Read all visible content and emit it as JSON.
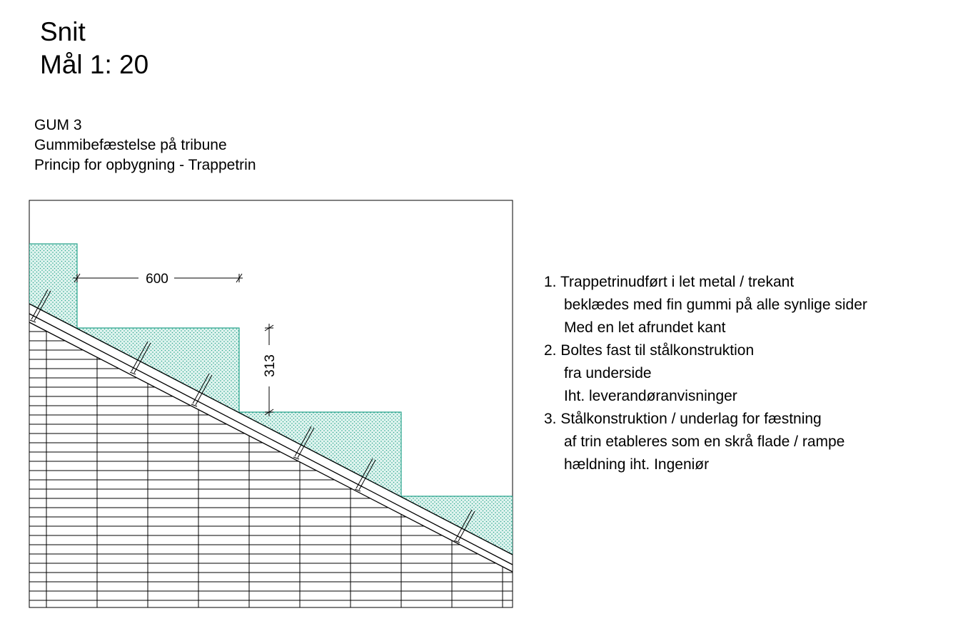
{
  "title": {
    "line1": "Snit",
    "line2": "Mål 1: 20"
  },
  "subtitle": {
    "code": "GUM 3",
    "description": "Gummibefæstelse på tribune",
    "principle": "Princip for opbygning - Trappetrin"
  },
  "dimensions": {
    "tread": "600",
    "riser": "313"
  },
  "colors": {
    "rubber_fill": "#e0f4ef",
    "rubber_dots": "#2aa58e",
    "rubber_outline": "#2aa58e",
    "lines": "#000000"
  },
  "notes": [
    {
      "number": "1.",
      "lines": [
        "Trappetrinudført i let metal / trekant",
        "beklædes med fin gummi på alle synlige sider",
        "Med en let afrundet kant"
      ]
    },
    {
      "number": "2.",
      "lines": [
        "Boltes fast til stålkonstruktion",
        "fra underside",
        "Iht. leverandøranvisninger"
      ]
    },
    {
      "number": "3.",
      "lines": [
        "Stålkonstruktion / underlag for fæstning",
        "af trin etableres som en skrå flade / rampe",
        "hældning iht. Ingeniør"
      ]
    }
  ]
}
